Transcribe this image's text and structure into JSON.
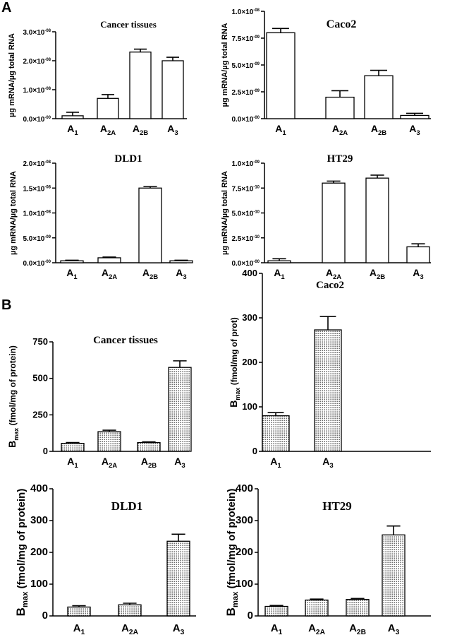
{
  "panels": [
    {
      "label": "A"
    },
    {
      "label": "B"
    }
  ],
  "chart_data": [
    {
      "panel": "A",
      "type": "bar",
      "title": "Cancer tissues",
      "ylabel": "µg mRNA/µg total RNA",
      "categories": [
        {
          "base": "A",
          "sub": "1"
        },
        {
          "base": "A",
          "sub": "2A"
        },
        {
          "base": "A",
          "sub": "2B"
        },
        {
          "base": "A",
          "sub": "3"
        }
      ],
      "values": [
        1e-09,
        7e-09,
        2.3e-08,
        2e-08
      ],
      "errors": [
        1.2e-09,
        1.3e-09,
        1e-09,
        1.2e-09
      ],
      "ylim": [
        0,
        3e-08
      ],
      "yticks": [
        {
          "value": 0,
          "mant": "0.0",
          "exp": "-00"
        },
        {
          "value": 1e-08,
          "mant": "1.0",
          "exp": "-08"
        },
        {
          "value": 2e-08,
          "mant": "2.0",
          "exp": "-08"
        },
        {
          "value": 3e-08,
          "mant": "3.0",
          "exp": "-08"
        }
      ],
      "fill": "open"
    },
    {
      "panel": "A",
      "type": "bar",
      "title": "Caco2",
      "ylabel": "µg mRNA/µg total RNA",
      "categories": [
        {
          "base": "A",
          "sub": "1"
        },
        {
          "base": "A",
          "sub": "2A"
        },
        {
          "base": "A",
          "sub": "2B"
        },
        {
          "base": "A",
          "sub": "3"
        }
      ],
      "values": [
        8e-09,
        2e-09,
        4e-09,
        3e-10
      ],
      "errors": [
        4e-10,
        6e-10,
        5e-10,
        2e-10
      ],
      "ylim": [
        0,
        1e-08
      ],
      "yticks": [
        {
          "value": 0,
          "mant": "0.0",
          "exp": "-00"
        },
        {
          "value": 2.5e-09,
          "mant": "2.5",
          "exp": "-09"
        },
        {
          "value": 5e-09,
          "mant": "5.0",
          "exp": "-09"
        },
        {
          "value": 7.5e-09,
          "mant": "7.5",
          "exp": "-09"
        },
        {
          "value": 1e-08,
          "mant": "1.0",
          "exp": "-08"
        }
      ],
      "fill": "open"
    },
    {
      "panel": "A",
      "type": "bar",
      "title": "DLD1",
      "ylabel": "µg mRNA/µg total RNA",
      "categories": [
        {
          "base": "A",
          "sub": "1"
        },
        {
          "base": "A",
          "sub": "2A"
        },
        {
          "base": "A",
          "sub": "2B"
        },
        {
          "base": "A",
          "sub": "3"
        }
      ],
      "values": [
        4e-10,
        1e-09,
        1.5e-08,
        4e-10
      ],
      "errors": [
        1e-10,
        1.5e-10,
        3e-10,
        1e-10
      ],
      "ylim": [
        0,
        2e-08
      ],
      "yticks": [
        {
          "value": 0,
          "mant": "0.0",
          "exp": "-00"
        },
        {
          "value": 5e-09,
          "mant": "5.0",
          "exp": "-09"
        },
        {
          "value": 1e-08,
          "mant": "1.0",
          "exp": "-08"
        },
        {
          "value": 1.5e-08,
          "mant": "1.5",
          "exp": "-08"
        },
        {
          "value": 2e-08,
          "mant": "2.0",
          "exp": "-08"
        }
      ],
      "fill": "open"
    },
    {
      "panel": "A",
      "type": "bar",
      "title": "HT29",
      "ylabel": "µg mRNA/µg total RNA",
      "categories": [
        {
          "base": "A",
          "sub": "1"
        },
        {
          "base": "A",
          "sub": "2A"
        },
        {
          "base": "A",
          "sub": "2B"
        },
        {
          "base": "A",
          "sub": "3"
        }
      ],
      "values": [
        2e-11,
        8e-10,
        8.5e-10,
        1.6e-10
      ],
      "errors": [
        2e-11,
        2e-11,
        3e-11,
        3e-11
      ],
      "ylim": [
        0,
        1e-09
      ],
      "yticks": [
        {
          "value": 0,
          "mant": "0.0",
          "exp": "-00"
        },
        {
          "value": 2.5e-10,
          "mant": "2.5",
          "exp": "-10"
        },
        {
          "value": 5e-10,
          "mant": "5.0",
          "exp": "-10"
        },
        {
          "value": 7.5e-10,
          "mant": "7.5",
          "exp": "-10"
        },
        {
          "value": 1e-09,
          "mant": "1.0",
          "exp": "-09"
        }
      ],
      "fill": "open"
    },
    {
      "panel": "B",
      "type": "bar",
      "title": "Cancer tissues",
      "ylabel": {
        "base": "B",
        "sub": "max",
        "rest": " (fmol/mg of protein)"
      },
      "categories": [
        {
          "base": "A",
          "sub": "1"
        },
        {
          "base": "A",
          "sub": "2A"
        },
        {
          "base": "A",
          "sub": "2B"
        },
        {
          "base": "A",
          "sub": "3"
        }
      ],
      "values": [
        55,
        135,
        60,
        575
      ],
      "errors": [
        5,
        10,
        5,
        45
      ],
      "ylim": [
        0,
        750
      ],
      "yticks": [
        {
          "value": 0,
          "label": "0"
        },
        {
          "value": 250,
          "label": "250"
        },
        {
          "value": 500,
          "label": "500"
        },
        {
          "value": 750,
          "label": "750"
        }
      ],
      "fill": "dotted"
    },
    {
      "panel": "B",
      "type": "bar",
      "title": "Caco2",
      "ylabel": {
        "base": "B",
        "sub": "max",
        "rest": " (fmol/mg of prot)"
      },
      "categories": [
        {
          "base": "A",
          "sub": "1"
        },
        {
          "base": "A",
          "sub": "3"
        }
      ],
      "values": [
        80,
        273
      ],
      "errors": [
        7,
        30
      ],
      "ylim": [
        0,
        400
      ],
      "yticks": [
        {
          "value": 0,
          "label": "0"
        },
        {
          "value": 100,
          "label": "100"
        },
        {
          "value": 200,
          "label": "200"
        },
        {
          "value": 300,
          "label": "300"
        },
        {
          "value": 400,
          "label": "400"
        }
      ],
      "fill": "dotted"
    },
    {
      "panel": "B",
      "type": "bar",
      "title": "DLD1",
      "ylabel": {
        "base": "B",
        "sub": "max",
        "rest": " (fmol/mg of protein)"
      },
      "categories": [
        {
          "base": "A",
          "sub": "1"
        },
        {
          "base": "A",
          "sub": "2A"
        },
        {
          "base": "A",
          "sub": "3"
        }
      ],
      "values": [
        28,
        35,
        235
      ],
      "errors": [
        4,
        5,
        22
      ],
      "ylim": [
        0,
        400
      ],
      "yticks": [
        {
          "value": 0,
          "label": "0"
        },
        {
          "value": 100,
          "label": "100"
        },
        {
          "value": 200,
          "label": "200"
        },
        {
          "value": 300,
          "label": "300"
        },
        {
          "value": 400,
          "label": "400"
        }
      ],
      "fill": "dotted"
    },
    {
      "panel": "B",
      "type": "bar",
      "title": "HT29",
      "ylabel": {
        "base": "B",
        "sub": "max",
        "rest": " (fmol/mg of protein)"
      },
      "categories": [
        {
          "base": "A",
          "sub": "1"
        },
        {
          "base": "A",
          "sub": "2A"
        },
        {
          "base": "A",
          "sub": "2B"
        },
        {
          "base": "A",
          "sub": "3"
        }
      ],
      "values": [
        30,
        50,
        52,
        255
      ],
      "errors": [
        3,
        3,
        3,
        28
      ],
      "ylim": [
        0,
        400
      ],
      "yticks": [
        {
          "value": 0,
          "label": "0"
        },
        {
          "value": 100,
          "label": "100"
        },
        {
          "value": 200,
          "label": "200"
        },
        {
          "value": 300,
          "label": "300"
        },
        {
          "value": 400,
          "label": "400"
        }
      ],
      "fill": "dotted"
    }
  ]
}
